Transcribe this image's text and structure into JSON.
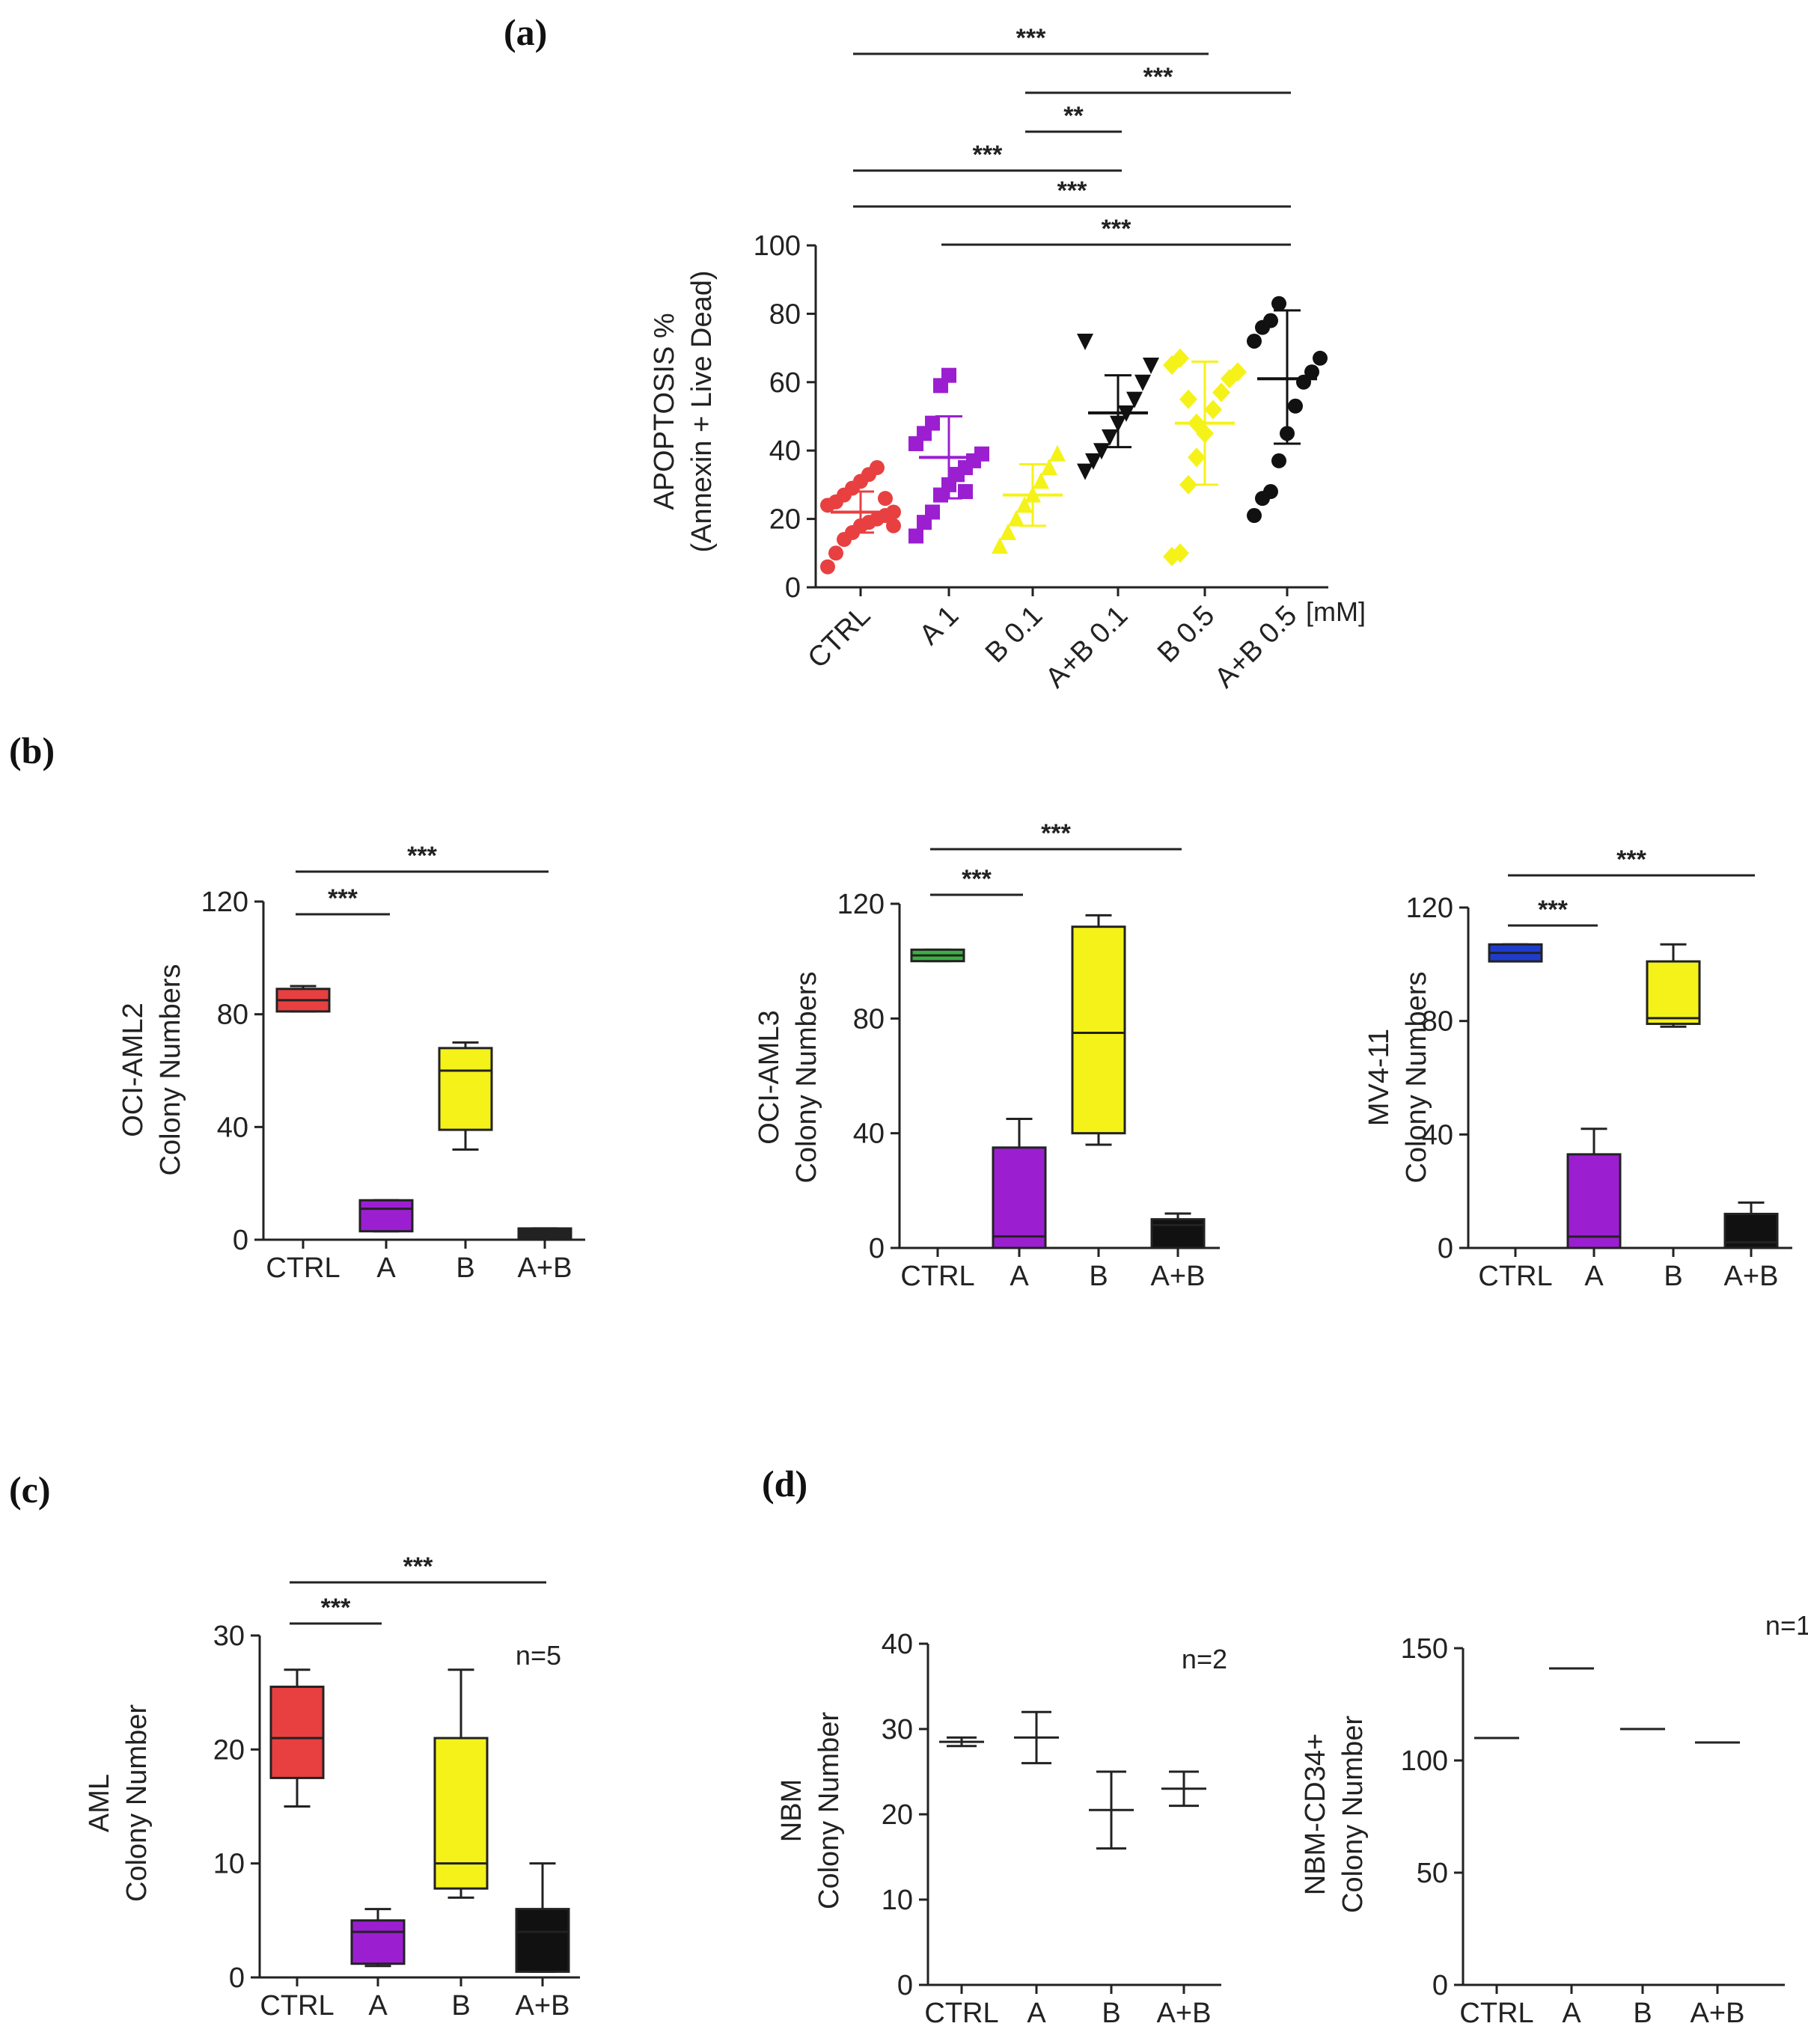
{
  "panel_labels": {
    "a": "(a)",
    "b": "(b)",
    "c": "(c)",
    "d": "(d)"
  },
  "chart_data": [
    {
      "id": "a",
      "type": "scatter",
      "ylabel_line1": "APOPTOSIS %",
      "ylabel_line2": "(Annexin + Live Dead)",
      "ylim": [
        0,
        100
      ],
      "yticks": [
        "0",
        "20",
        "40",
        "60",
        "80",
        "100"
      ],
      "unit": "[mM]",
      "categories": [
        "CTRL",
        "A 1",
        "B 0.1",
        "A+B 0.1",
        "B 0.5",
        "A+B 0.5"
      ],
      "colors": [
        "#e84040",
        "#9b1fd1",
        "#f5f21a",
        "#111111",
        "#f5f21a",
        "#111111"
      ],
      "markers": [
        "circle",
        "square",
        "triangle",
        "triangle-down",
        "diamond",
        "circle"
      ],
      "points": [
        [
          6,
          10,
          14,
          16,
          18,
          19,
          20,
          21,
          22,
          24,
          25,
          27,
          29,
          31,
          33,
          35,
          26,
          18
        ],
        [
          15,
          19,
          22,
          27,
          30,
          33,
          35,
          37,
          39,
          42,
          45,
          48,
          59,
          62,
          33,
          28
        ],
        [
          12,
          16,
          20,
          24,
          27,
          31,
          35,
          39
        ],
        [
          34,
          37,
          40,
          44,
          48,
          51,
          55,
          60,
          65,
          72
        ],
        [
          9,
          10,
          30,
          38,
          45,
          52,
          57,
          61,
          63,
          65,
          67,
          55,
          48
        ],
        [
          21,
          26,
          28,
          37,
          45,
          53,
          60,
          63,
          67,
          72,
          76,
          78,
          83
        ]
      ],
      "mean": [
        22,
        38,
        27,
        51,
        48,
        61
      ],
      "sd_low": [
        16,
        26,
        18,
        41,
        30,
        42
      ],
      "sd_high": [
        28,
        50,
        36,
        62,
        66,
        81
      ],
      "significance": [
        {
          "from": 0,
          "to": 4,
          "label": "***"
        },
        {
          "from": 2,
          "to": 5,
          "label": "***"
        },
        {
          "from": 2,
          "to": 3,
          "label": "**"
        },
        {
          "from": 0,
          "to": 3,
          "label": "***"
        },
        {
          "from": 0,
          "to": 5,
          "label": "***"
        },
        {
          "from": 1,
          "to": 5,
          "label": "***"
        }
      ]
    },
    {
      "id": "b1",
      "type": "box",
      "ylabel_line1": "OCI-AML2",
      "ylabel_line2": "Colony Numbers",
      "ylim": [
        0,
        120
      ],
      "yticks": [
        "0",
        "40",
        "80",
        "120"
      ],
      "categories": [
        "CTRL",
        "A",
        "B",
        "A+B"
      ],
      "colors": [
        "#e84040",
        "#9b1fd1",
        "#f5f21a",
        "#222222"
      ],
      "boxes": [
        {
          "min": 81,
          "q1": 81,
          "median": 85,
          "q3": 89,
          "max": 90
        },
        {
          "min": 3,
          "q1": 3,
          "median": 11,
          "q3": 14,
          "max": 14
        },
        {
          "min": 32,
          "q1": 39,
          "median": 60,
          "q3": 68,
          "max": 70
        },
        {
          "min": 0,
          "q1": 0,
          "median": 2,
          "q3": 4,
          "max": 4
        }
      ],
      "significance": [
        {
          "from": 0,
          "to": 1,
          "label": "***"
        },
        {
          "from": 0,
          "to": 3,
          "label": "***"
        }
      ]
    },
    {
      "id": "b2",
      "type": "box",
      "ylabel_line1": "OCI-AML3",
      "ylabel_line2": "Colony Numbers",
      "ylim": [
        0,
        120
      ],
      "yticks": [
        "0",
        "40",
        "80",
        "120"
      ],
      "categories": [
        "CTRL",
        "A",
        "B",
        "A+B"
      ],
      "colors": [
        "#3cb043",
        "#9b1fd1",
        "#f5f21a",
        "#111111"
      ],
      "boxes": [
        {
          "min": 100,
          "q1": 100,
          "median": 102,
          "q3": 104,
          "max": 104
        },
        {
          "min": 0,
          "q1": 0,
          "median": 4,
          "q3": 35,
          "max": 45
        },
        {
          "min": 36,
          "q1": 40,
          "median": 75,
          "q3": 112,
          "max": 116
        },
        {
          "min": 0,
          "q1": 0,
          "median": 8,
          "q3": 10,
          "max": 12
        }
      ],
      "significance": [
        {
          "from": 0,
          "to": 1,
          "label": "***"
        },
        {
          "from": 0,
          "to": 3,
          "label": "***"
        }
      ]
    },
    {
      "id": "b3",
      "type": "box",
      "ylabel_line1": "MV4-11",
      "ylabel_line2": "Colony Numbers",
      "ylim": [
        0,
        120
      ],
      "yticks": [
        "0",
        "40",
        "80",
        "120"
      ],
      "categories": [
        "CTRL",
        "A",
        "B",
        "A+B"
      ],
      "colors": [
        "#1f3dcc",
        "#9b1fd1",
        "#f5f21a",
        "#111111"
      ],
      "boxes": [
        {
          "min": 101,
          "q1": 101,
          "median": 104,
          "q3": 107,
          "max": 107
        },
        {
          "min": 0,
          "q1": 0,
          "median": 4,
          "q3": 33,
          "max": 42
        },
        {
          "min": 78,
          "q1": 79,
          "median": 81,
          "q3": 101,
          "max": 107
        },
        {
          "min": 0,
          "q1": 0,
          "median": 2,
          "q3": 12,
          "max": 16
        }
      ],
      "significance": [
        {
          "from": 0,
          "to": 1,
          "label": "***"
        },
        {
          "from": 0,
          "to": 3,
          "label": "***"
        }
      ]
    },
    {
      "id": "c",
      "type": "box",
      "ylabel_line1": "AML",
      "ylabel_line2": "Colony Number",
      "ylim": [
        0,
        30
      ],
      "yticks": [
        "0",
        "10",
        "20",
        "30"
      ],
      "categories": [
        "CTRL",
        "A",
        "B",
        "A+B"
      ],
      "colors": [
        "#e84040",
        "#9b1fd1",
        "#f5f21a",
        "#111111"
      ],
      "n_label": "n=5",
      "boxes": [
        {
          "min": 15,
          "q1": 17.5,
          "median": 21,
          "q3": 25.5,
          "max": 27
        },
        {
          "min": 1,
          "q1": 1.2,
          "median": 4,
          "q3": 5,
          "max": 6
        },
        {
          "min": 7,
          "q1": 7.8,
          "median": 10,
          "q3": 21,
          "max": 27
        },
        {
          "min": 0.5,
          "q1": 0.5,
          "median": 4,
          "q3": 6,
          "max": 10
        }
      ],
      "significance": [
        {
          "from": 0,
          "to": 1,
          "label": "***"
        },
        {
          "from": 0,
          "to": 3,
          "label": "***"
        }
      ]
    },
    {
      "id": "d1",
      "type": "errorbar",
      "ylabel_line1": "NBM",
      "ylabel_line2": "Colony Number",
      "ylim": [
        0,
        40
      ],
      "yticks": [
        "0",
        "10",
        "20",
        "30",
        "40"
      ],
      "categories": [
        "CTRL",
        "A",
        "B",
        "A+B"
      ],
      "n_label": "n=2",
      "mean": [
        28.5,
        29,
        20.5,
        23
      ],
      "low": [
        28,
        26,
        16,
        21
      ],
      "high": [
        29,
        32,
        25,
        25
      ]
    },
    {
      "id": "d2",
      "type": "errorbar",
      "ylabel_line1": "NBM-CD34+",
      "ylabel_line2": "Colony Number",
      "ylim": [
        0,
        150
      ],
      "yticks": [
        "0",
        "50",
        "100",
        "150"
      ],
      "categories": [
        "CTRL",
        "A",
        "B",
        "A+B"
      ],
      "n_label": "n=1",
      "mean": [
        110,
        141,
        114,
        108
      ],
      "low": [
        110,
        141,
        114,
        108
      ],
      "high": [
        110,
        141,
        114,
        108
      ]
    }
  ]
}
